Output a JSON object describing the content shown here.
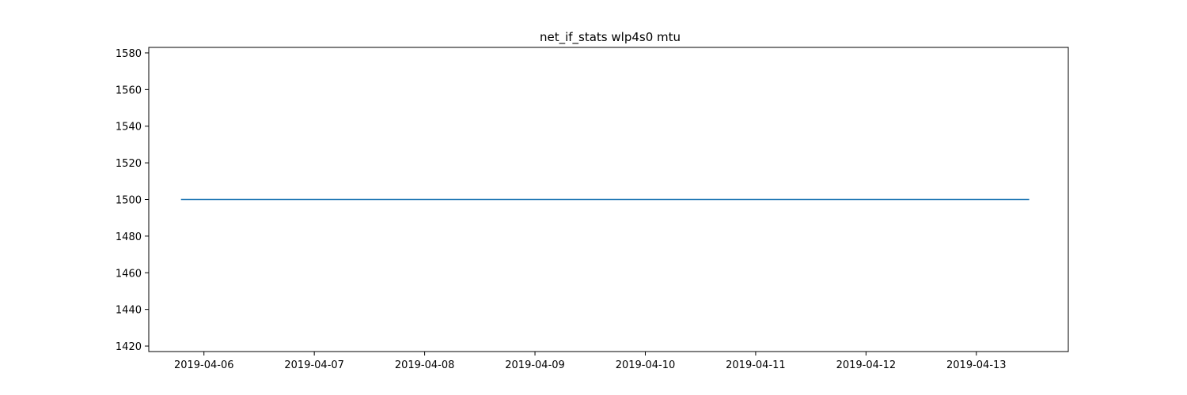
{
  "chart_data": {
    "type": "line",
    "title": "net_if_stats wlp4s0 mtu",
    "xlabel": "",
    "ylabel": "",
    "xlim": [
      "2019-04-05T12:00",
      "2019-04-13T20:00"
    ],
    "ylim": [
      1417,
      1583
    ],
    "x_ticks": [
      "2019-04-06",
      "2019-04-07",
      "2019-04-08",
      "2019-04-09",
      "2019-04-10",
      "2019-04-11",
      "2019-04-12",
      "2019-04-13"
    ],
    "y_ticks": [
      1420,
      1440,
      1460,
      1480,
      1500,
      1520,
      1540,
      1560,
      1580
    ],
    "grid": false,
    "legend": "none",
    "series": [
      {
        "color": "#1f77b4",
        "x": [
          "2019-04-05T19:00",
          "2019-04-13T11:30"
        ],
        "y": [
          1500,
          1500
        ]
      }
    ]
  }
}
